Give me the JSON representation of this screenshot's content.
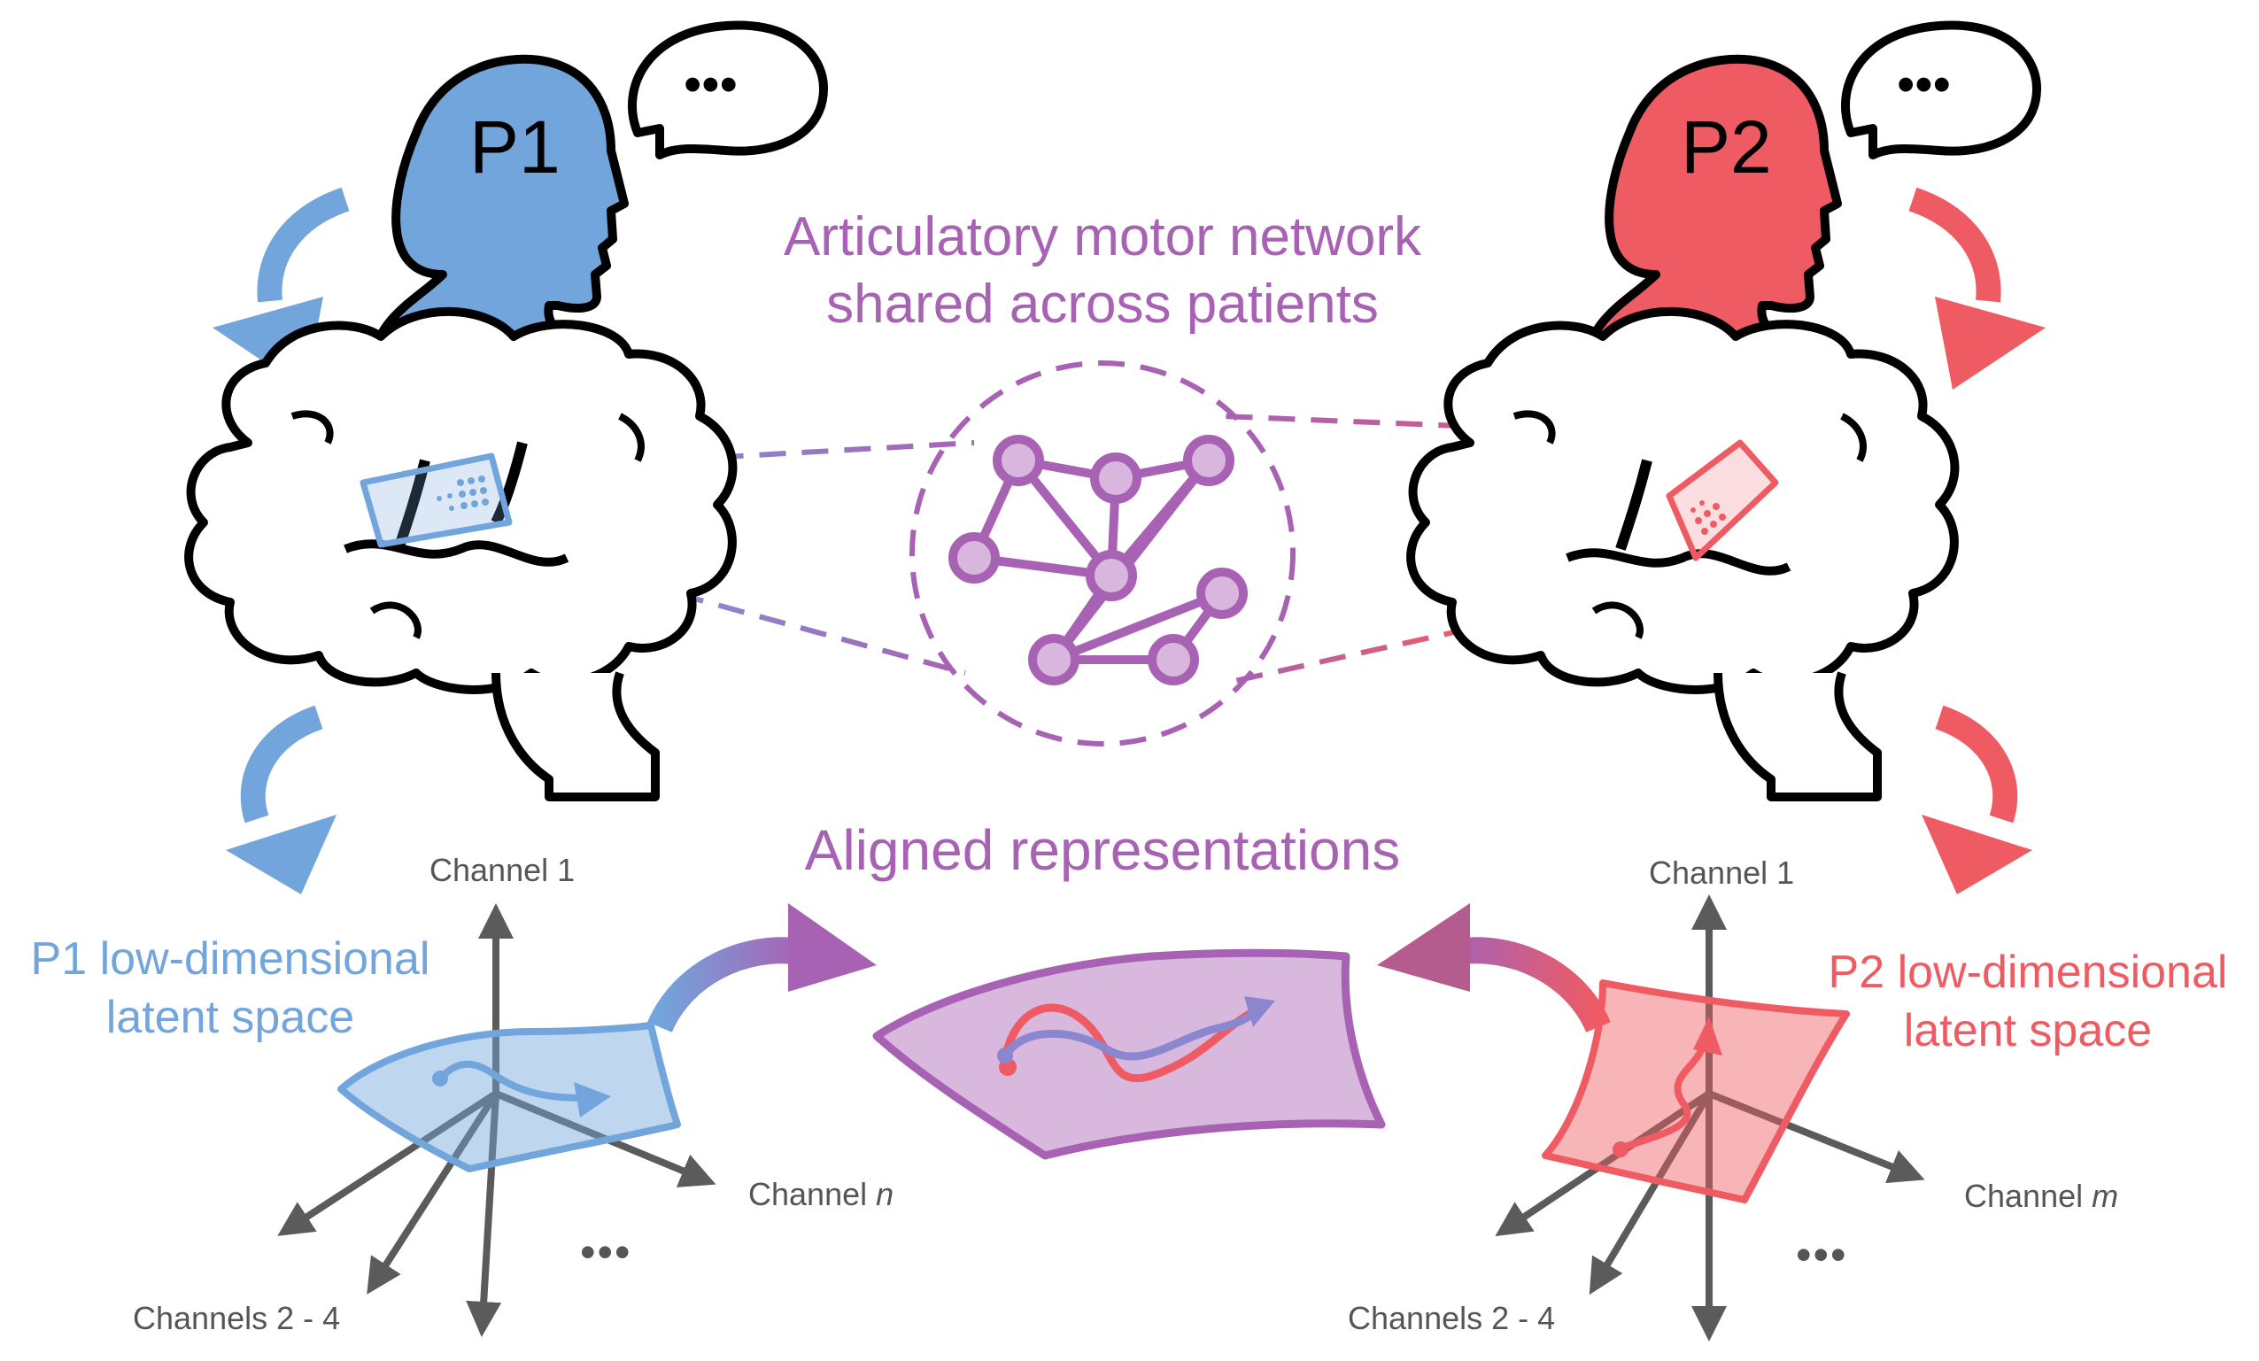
{
  "labels": {
    "p1": "P1",
    "p2": "P2",
    "speech_ellipsis": "•••",
    "network_title_line1": "Articulatory motor network",
    "network_title_line2": "shared across patients",
    "aligned_title": "Aligned representations",
    "p1_latent_line1": "P1 low-dimensional",
    "p1_latent_line2": "latent space",
    "p2_latent_line1": "P2 low-dimensional",
    "p2_latent_line2": "latent space",
    "channel_1": "Channel 1",
    "channels_2_4": "Channels 2 - 4",
    "channel_prefix": "Channel ",
    "channel_n": "n",
    "channel_m": "m",
    "axis_ellipsis": "•••"
  },
  "colors": {
    "p1_blue": "#72a5dc",
    "p2_red": "#ef5b62",
    "shared_purple": "#a862b3",
    "axis_gray": "#5b5b5b"
  }
}
